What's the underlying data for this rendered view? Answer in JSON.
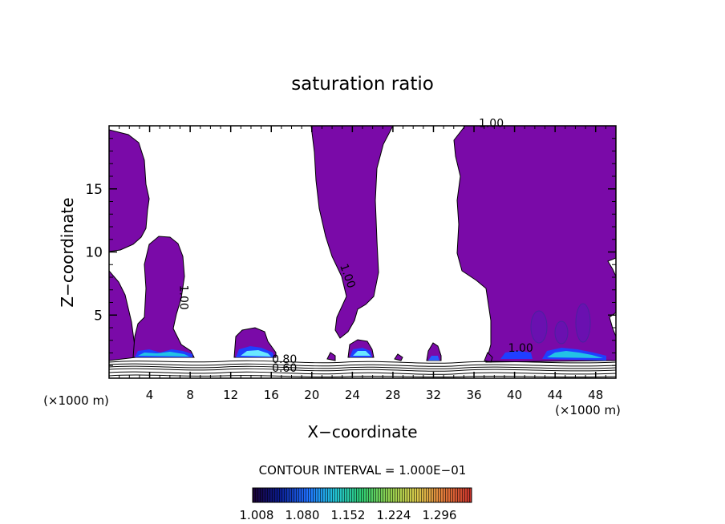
{
  "chart_data": {
    "type": "contour",
    "title": "saturation ratio",
    "xlabel": "X−coordinate",
    "ylabel": "Z−coordinate",
    "x_unit_left": "(×1000 m)",
    "x_unit_right": "(×1000 m)",
    "xlim": [
      0,
      50
    ],
    "ylim": [
      0,
      20
    ],
    "x_ticks": [
      4,
      8,
      12,
      16,
      20,
      24,
      28,
      32,
      36,
      40,
      44,
      48
    ],
    "y_ticks": [
      5,
      10,
      15
    ],
    "contour_labels": [
      {
        "text": "1.00",
        "x": 37.7,
        "y": 19.9
      },
      {
        "text": "1.00",
        "x": 23.2,
        "y": 8.0
      },
      {
        "text": "1.00",
        "x": 7.0,
        "y": 6.4
      },
      {
        "text": "1.00",
        "x": 40.6,
        "y": 2.1
      },
      {
        "text": "0.80",
        "x": 17.3,
        "y": 1.2
      },
      {
        "text": "0.60",
        "x": 17.3,
        "y": 0.5
      }
    ],
    "contour_interval_text": "CONTOUR INTERVAL = 1.000E−01",
    "colorbar": {
      "ticks": [
        "1.008",
        "1.080",
        "1.152",
        "1.224",
        "1.296"
      ],
      "colors": [
        "#1a0033",
        "#0a1a8c",
        "#1f6fff",
        "#22c2d9",
        "#2ecc71",
        "#8fd14f",
        "#d9c94a",
        "#e07a3a",
        "#c9312b"
      ]
    },
    "fill_color": "#7a0aa8",
    "highlight_colors": [
      "#1f3fff",
      "#22c2e6",
      "#6ae8ff"
    ]
  }
}
